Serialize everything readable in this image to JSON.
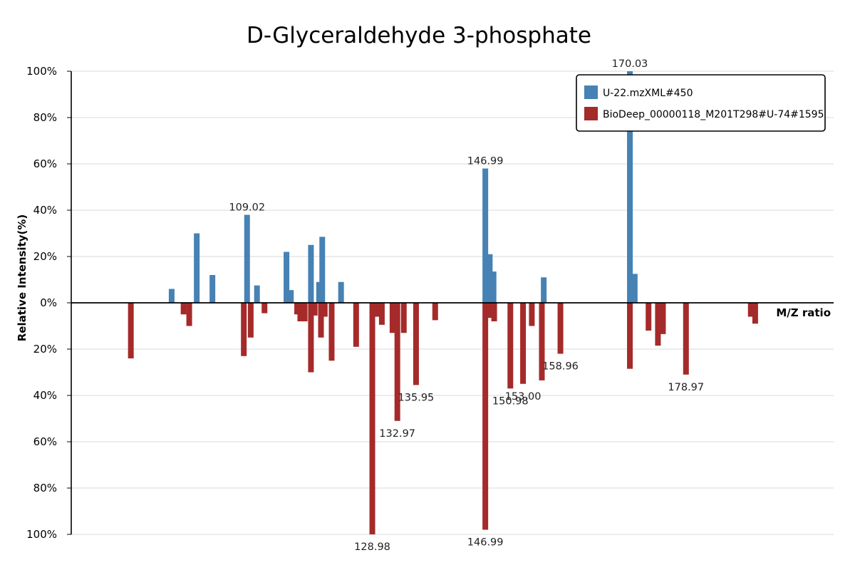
{
  "chart_data": {
    "type": "bar",
    "title": "D-Glyceraldehyde 3-phosphate",
    "xlabel": "M/Z ratio",
    "ylabel": "Relative Intensity(%)",
    "y_tick_labels": [
      "100%",
      "80%",
      "60%",
      "40%",
      "20%",
      "0%",
      "20%",
      "40%",
      "60%",
      "80%",
      "100%"
    ],
    "xlim": [
      81.0,
      202.5
    ],
    "ylim": [
      -100,
      100
    ],
    "grid": true,
    "legend_position": "top-right",
    "series": [
      {
        "name": "U-22.mzXML#450",
        "color": "#4682b4",
        "direction": "up",
        "peaks": [
          {
            "mz": 97.0,
            "intensity": 6,
            "label": ""
          },
          {
            "mz": 101.0,
            "intensity": 30,
            "label": ""
          },
          {
            "mz": 103.5,
            "intensity": 12,
            "label": ""
          },
          {
            "mz": 109.02,
            "intensity": 38,
            "label": "109.02"
          },
          {
            "mz": 110.6,
            "intensity": 7.5,
            "label": ""
          },
          {
            "mz": 115.3,
            "intensity": 22,
            "label": ""
          },
          {
            "mz": 116.0,
            "intensity": 5.5,
            "label": ""
          },
          {
            "mz": 119.2,
            "intensity": 25,
            "label": ""
          },
          {
            "mz": 120.5,
            "intensity": 9,
            "label": ""
          },
          {
            "mz": 121.0,
            "intensity": 28.5,
            "label": ""
          },
          {
            "mz": 124.0,
            "intensity": 9,
            "label": ""
          },
          {
            "mz": 146.99,
            "intensity": 58,
            "label": "146.99"
          },
          {
            "mz": 147.7,
            "intensity": 21,
            "label": ""
          },
          {
            "mz": 148.3,
            "intensity": 13.5,
            "label": ""
          },
          {
            "mz": 156.3,
            "intensity": 11,
            "label": ""
          },
          {
            "mz": 170.03,
            "intensity": 100,
            "label": "170.03"
          },
          {
            "mz": 170.8,
            "intensity": 12.5,
            "label": ""
          }
        ]
      },
      {
        "name": "BioDeep_00000118_M201T298#U-74#1595",
        "color": "#a52a2a",
        "direction": "down",
        "peaks": [
          {
            "mz": 90.5,
            "intensity": 24,
            "label": ""
          },
          {
            "mz": 98.9,
            "intensity": 5,
            "label": ""
          },
          {
            "mz": 99.8,
            "intensity": 10,
            "label": ""
          },
          {
            "mz": 108.5,
            "intensity": 23,
            "label": ""
          },
          {
            "mz": 109.6,
            "intensity": 15,
            "label": ""
          },
          {
            "mz": 111.8,
            "intensity": 4.5,
            "label": ""
          },
          {
            "mz": 117.0,
            "intensity": 5,
            "label": ""
          },
          {
            "mz": 117.5,
            "intensity": 8,
            "label": ""
          },
          {
            "mz": 118.2,
            "intensity": 8,
            "label": ""
          },
          {
            "mz": 119.2,
            "intensity": 30,
            "label": ""
          },
          {
            "mz": 119.8,
            "intensity": 5.5,
            "label": ""
          },
          {
            "mz": 120.8,
            "intensity": 15,
            "label": ""
          },
          {
            "mz": 121.4,
            "intensity": 6,
            "label": ""
          },
          {
            "mz": 122.5,
            "intensity": 25,
            "label": ""
          },
          {
            "mz": 126.4,
            "intensity": 19,
            "label": ""
          },
          {
            "mz": 128.98,
            "intensity": 100,
            "label": "128.98"
          },
          {
            "mz": 129.6,
            "intensity": 6,
            "label": ""
          },
          {
            "mz": 130.5,
            "intensity": 9.5,
            "label": ""
          },
          {
            "mz": 132.97,
            "intensity": 51,
            "label": "132.97"
          },
          {
            "mz": 132.2,
            "intensity": 13,
            "label": ""
          },
          {
            "mz": 135.95,
            "intensity": 35.5,
            "label": "135.95"
          },
          {
            "mz": 134.0,
            "intensity": 13,
            "label": ""
          },
          {
            "mz": 139.0,
            "intensity": 7.5,
            "label": ""
          },
          {
            "mz": 146.99,
            "intensity": 98,
            "label": "146.99"
          },
          {
            "mz": 147.6,
            "intensity": 6.5,
            "label": ""
          },
          {
            "mz": 148.4,
            "intensity": 8,
            "label": ""
          },
          {
            "mz": 150.98,
            "intensity": 37,
            "label": "150.98"
          },
          {
            "mz": 153.0,
            "intensity": 35,
            "label": "153.00"
          },
          {
            "mz": 154.4,
            "intensity": 10,
            "label": ""
          },
          {
            "mz": 156.0,
            "intensity": 33.5,
            "label": ""
          },
          {
            "mz": 158.96,
            "intensity": 22,
            "label": "158.96"
          },
          {
            "mz": 170.03,
            "intensity": 28.5,
            "label": ""
          },
          {
            "mz": 173.0,
            "intensity": 12,
            "label": ""
          },
          {
            "mz": 174.5,
            "intensity": 18.5,
            "label": ""
          },
          {
            "mz": 175.3,
            "intensity": 13.5,
            "label": ""
          },
          {
            "mz": 178.97,
            "intensity": 31,
            "label": "178.97"
          },
          {
            "mz": 189.3,
            "intensity": 6,
            "label": ""
          },
          {
            "mz": 190.0,
            "intensity": 9,
            "label": ""
          }
        ]
      }
    ]
  }
}
